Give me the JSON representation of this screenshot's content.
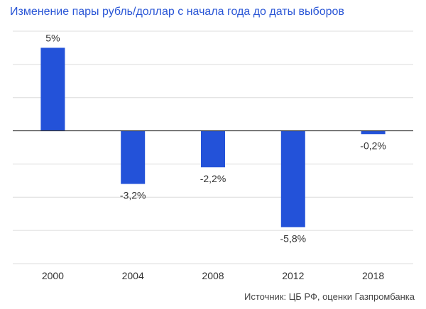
{
  "chart_data": {
    "type": "bar",
    "title": "Изменение пары рубль/доллар с начала года до даты выборов",
    "categories": [
      "2000",
      "2004",
      "2008",
      "2012",
      "2018"
    ],
    "values": [
      5,
      -3.2,
      -2.2,
      -5.8,
      -0.2
    ],
    "data_labels": [
      "5%",
      "-3,2%",
      "-2,2%",
      "-5,8%",
      "-0,2%"
    ],
    "ylim": [
      -8,
      6
    ],
    "y_gridlines": [
      6,
      4,
      2,
      0,
      -2,
      -4,
      -6,
      -8
    ],
    "grid": true,
    "colors": {
      "bar": "#2352d9",
      "title": "#2a56d6"
    }
  },
  "source": "Источник: ЦБ РФ, оценки Газпромбанка"
}
